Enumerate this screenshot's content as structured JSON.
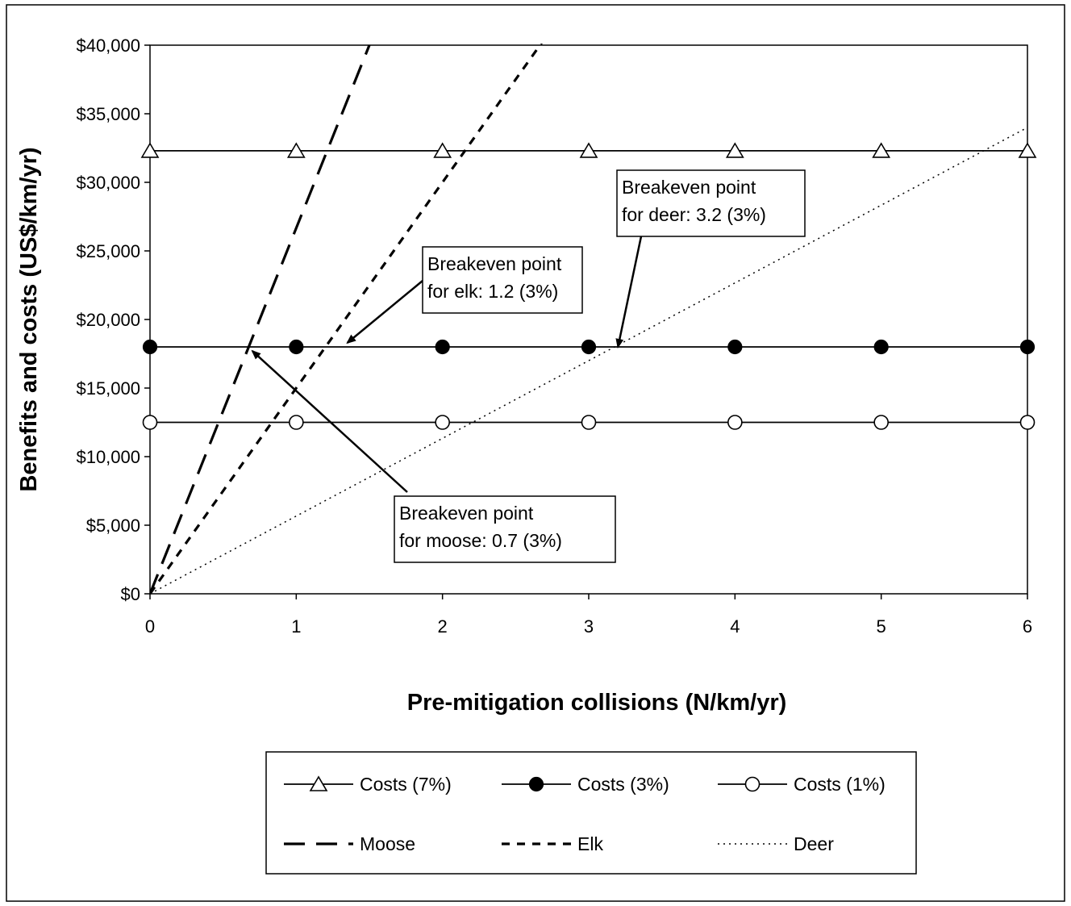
{
  "chart_data": {
    "type": "line",
    "xlabel": "Pre-mitigation collisions (N/km/yr)",
    "ylabel": "Benefits and costs (US$/km/yr)",
    "xlim": [
      0,
      6
    ],
    "ylim": [
      0,
      40000
    ],
    "x_ticks": [
      "0",
      "1",
      "2",
      "3",
      "4",
      "5",
      "6"
    ],
    "y_ticks": [
      "$0",
      "$5,000",
      "$10,000",
      "$15,000",
      "$20,000",
      "$25,000",
      "$30,000",
      "$35,000",
      "$40,000"
    ],
    "grid": false,
    "legend_position": "bottom",
    "series": [
      {
        "name": "Costs (7%)",
        "style": "solid",
        "marker": "triangle-open",
        "x": [
          0,
          1,
          2,
          3,
          4,
          5,
          6
        ],
        "y": [
          32300,
          32300,
          32300,
          32300,
          32300,
          32300,
          32300
        ]
      },
      {
        "name": "Costs (3%)",
        "style": "solid",
        "marker": "circle-filled",
        "x": [
          0,
          1,
          2,
          3,
          4,
          5,
          6
        ],
        "y": [
          18000,
          18000,
          18000,
          18000,
          18000,
          18000,
          18000
        ]
      },
      {
        "name": "Costs (1%)",
        "style": "solid",
        "marker": "circle-open",
        "x": [
          0,
          1,
          2,
          3,
          4,
          5,
          6
        ],
        "y": [
          12500,
          12500,
          12500,
          12500,
          12500,
          12500,
          12500
        ]
      },
      {
        "name": "Moose",
        "style": "long-dash",
        "marker": "none",
        "x": [
          0,
          1.5
        ],
        "y": [
          0,
          40000
        ]
      },
      {
        "name": "Elk",
        "style": "short-dash",
        "marker": "none",
        "x": [
          0,
          2.7
        ],
        "y": [
          0,
          40500
        ]
      },
      {
        "name": "Deer",
        "style": "dotted",
        "marker": "none",
        "x": [
          0,
          6
        ],
        "y": [
          0,
          34000
        ]
      }
    ],
    "annotations": [
      {
        "lines": [
          "Breakeven point",
          "for deer:  3.2 (3%)"
        ],
        "target": [
          3.2,
          18000
        ]
      },
      {
        "lines": [
          "Breakeven point",
          "for elk:  1.2 (3%)"
        ],
        "target": [
          1.35,
          18300
        ]
      },
      {
        "lines": [
          "Breakeven point",
          "for moose:  0.7 (3%)"
        ],
        "target": [
          0.7,
          17700
        ]
      }
    ]
  }
}
